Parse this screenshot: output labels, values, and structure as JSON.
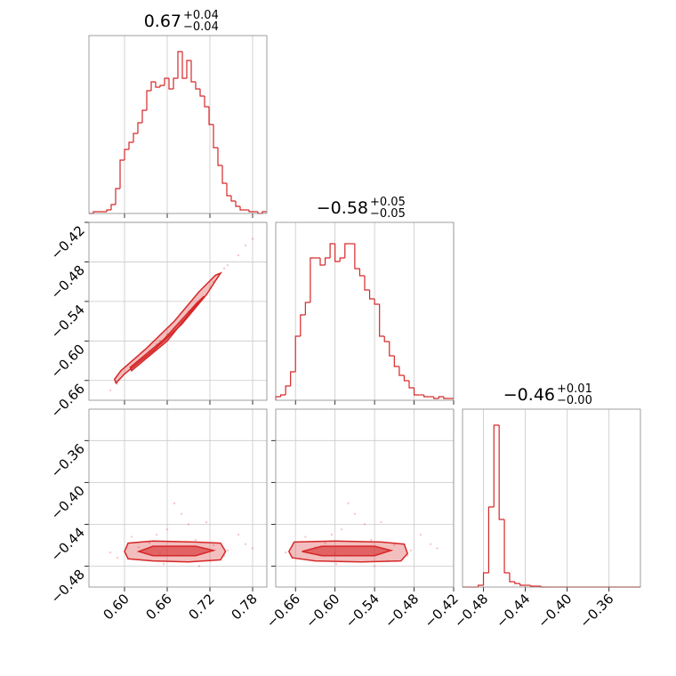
{
  "chart_data": {
    "type": "corner",
    "color": "#d62728",
    "grid": true,
    "parameters": [
      {
        "title": "0.67",
        "upper": "+0.04",
        "lower": "−0.04",
        "lim": [
          0.55,
          0.8
        ],
        "ticks": [
          {
            "value": 0.6,
            "label": "0.60"
          },
          0.66,
          0.72,
          0.78
        ],
        "hist_ylim": [
          0,
          100
        ],
        "bins": [
          0.55,
          0.55625,
          0.5625,
          0.56875,
          0.575,
          0.58125,
          0.5875,
          0.59375,
          0.6,
          0.60625,
          0.6125,
          0.61875,
          0.625,
          0.63125,
          0.6375,
          0.64375,
          0.65,
          0.65625,
          0.6625,
          0.66875,
          0.675,
          0.68125,
          0.6875,
          0.69375,
          0.7,
          0.70625,
          0.7125,
          0.71875,
          0.725,
          0.73125,
          0.7375,
          0.74375,
          0.75,
          0.75625,
          0.7625,
          0.76875,
          0.775,
          0.78125,
          0.7875,
          0.79375,
          0.8
        ],
        "counts": [
          0,
          1,
          1,
          1,
          2,
          5,
          14,
          30,
          36,
          40,
          45,
          51,
          58,
          69,
          74,
          71,
          72,
          76,
          70,
          76,
          91,
          76,
          86,
          74,
          70,
          66,
          60,
          50,
          37,
          27,
          17,
          10,
          7,
          4,
          2,
          2,
          1,
          1,
          0,
          1
        ]
      },
      {
        "title": "−0.58",
        "upper": "+0.05",
        "lower": "−0.05",
        "lim": [
          -0.69,
          -0.42
        ],
        "ticks": [
          {
            "value": -0.66,
            "label": "−0.66"
          },
          {
            "value": -0.6,
            "label": "−0.60"
          },
          {
            "value": -0.54,
            "label": "−0.54"
          },
          {
            "value": -0.48,
            "label": "−0.48"
          },
          {
            "value": -0.42,
            "label": "−0.42"
          }
        ],
        "hist_ylim": [
          0,
          100
        ],
        "bins": [
          -0.69,
          -0.6825,
          -0.675,
          -0.6675,
          -0.66,
          -0.6525,
          -0.645,
          -0.6375,
          -0.63,
          -0.6225,
          -0.615,
          -0.6075,
          -0.6,
          -0.5925,
          -0.585,
          -0.5775,
          -0.57,
          -0.5625,
          -0.555,
          -0.5475,
          -0.54,
          -0.5325,
          -0.525,
          -0.5175,
          -0.51,
          -0.5025,
          -0.495,
          -0.4875,
          -0.48,
          -0.4725,
          -0.465,
          -0.4575,
          -0.45,
          -0.4425,
          -0.435,
          -0.4275,
          -0.42
        ],
        "counts": [
          2,
          3,
          8,
          16,
          36,
          48,
          55,
          80,
          80,
          76,
          80,
          88,
          78,
          80,
          88,
          88,
          74,
          70,
          62,
          57,
          54,
          36,
          33,
          25,
          19,
          14,
          11,
          7,
          3,
          3,
          2,
          2,
          1,
          2,
          1,
          1
        ]
      },
      {
        "title": "−0.46",
        "upper": "+0.01",
        "lower": "−0.00",
        "lim": [
          -0.5,
          -0.33
        ],
        "ticks": [
          {
            "value": -0.48,
            "label": "−0.48"
          },
          {
            "value": -0.44,
            "label": "−0.44"
          },
          {
            "value": -0.4,
            "label": "−0.40"
          },
          {
            "value": -0.36,
            "label": "−0.36"
          }
        ],
        "hist_ylim": [
          0,
          100
        ],
        "bins": [
          -0.5,
          -0.495,
          -0.49,
          -0.485,
          -0.48,
          -0.475,
          -0.47,
          -0.465,
          -0.46,
          -0.455,
          -0.45,
          -0.445,
          -0.44,
          -0.435,
          -0.43,
          -0.425,
          -0.42,
          -0.415,
          -0.41,
          -0.405,
          -0.4,
          -0.395,
          -0.39,
          -0.385,
          -0.38,
          -0.375,
          -0.37,
          -0.365,
          -0.36,
          -0.355,
          -0.35,
          -0.345,
          -0.34,
          -0.335,
          -0.33
        ],
        "counts": [
          0,
          0,
          0,
          1,
          8,
          45,
          91,
          38,
          8,
          3,
          2,
          1,
          1,
          0.5,
          0.5,
          0,
          0,
          0,
          0,
          0,
          0,
          0,
          0,
          0,
          0,
          0,
          0,
          0,
          0,
          0,
          0,
          0,
          0,
          0
        ]
      }
    ],
    "samples": [
      [
        0.62,
        -0.63,
        -0.462
      ],
      [
        0.65,
        -0.6,
        -0.468
      ],
      [
        0.7,
        -0.545,
        -0.455
      ],
      [
        0.74,
        -0.49,
        -0.47
      ],
      [
        0.76,
        -0.47,
        -0.45
      ],
      [
        0.78,
        -0.445,
        -0.463
      ],
      [
        0.59,
        -0.665,
        -0.472
      ],
      [
        0.68,
        -0.57,
        -0.43
      ],
      [
        0.66,
        -0.59,
        -0.445
      ],
      [
        0.72,
        -0.52,
        -0.475
      ],
      [
        0.635,
        -0.615,
        -0.458
      ],
      [
        0.705,
        -0.54,
        -0.48
      ],
      [
        0.61,
        -0.645,
        -0.452
      ],
      [
        0.69,
        -0.555,
        -0.44
      ],
      [
        0.745,
        -0.485,
        -0.465
      ],
      [
        0.67,
        -0.58,
        -0.42
      ],
      [
        0.725,
        -0.51,
        -0.46
      ],
      [
        0.655,
        -0.598,
        -0.478
      ],
      [
        0.58,
        -0.675,
        -0.467
      ],
      [
        0.77,
        -0.455,
        -0.459
      ],
      [
        0.715,
        -0.53,
        -0.438
      ],
      [
        0.645,
        -0.605,
        -0.45
      ]
    ],
    "contours": [
      [
        [
          [
            0.588,
            -0.664
          ],
          [
            0.6,
            -0.65
          ],
          [
            0.64,
            -0.615
          ],
          [
            0.68,
            -0.575
          ],
          [
            0.715,
            -0.53
          ],
          [
            0.73,
            -0.505
          ],
          [
            0.735,
            -0.497
          ],
          [
            0.728,
            -0.5
          ],
          [
            0.705,
            -0.525
          ],
          [
            0.67,
            -0.57
          ],
          [
            0.63,
            -0.612
          ],
          [
            0.595,
            -0.645
          ],
          [
            0.586,
            -0.658
          ]
        ],
        [
          [
            0.61,
            -0.645
          ],
          [
            0.66,
            -0.6
          ],
          [
            0.705,
            -0.54
          ],
          [
            0.712,
            -0.532
          ],
          [
            0.702,
            -0.542
          ],
          [
            0.655,
            -0.598
          ],
          [
            0.608,
            -0.64
          ]
        ]
      ],
      [
        [
          [
            0.6,
            -0.466
          ],
          [
            0.605,
            -0.458
          ],
          [
            0.64,
            -0.456
          ],
          [
            0.7,
            -0.457
          ],
          [
            0.735,
            -0.458
          ],
          [
            0.742,
            -0.466
          ],
          [
            0.735,
            -0.474
          ],
          [
            0.69,
            -0.476
          ],
          [
            0.64,
            -0.475
          ],
          [
            0.605,
            -0.473
          ]
        ],
        [
          [
            0.62,
            -0.466
          ],
          [
            0.64,
            -0.461
          ],
          [
            0.7,
            -0.461
          ],
          [
            0.725,
            -0.465
          ],
          [
            0.7,
            -0.47
          ],
          [
            0.64,
            -0.47
          ]
        ]
      ],
      [
        [
          [
            -0.67,
            -0.466
          ],
          [
            -0.662,
            -0.457
          ],
          [
            -0.6,
            -0.456
          ],
          [
            -0.53,
            -0.457
          ],
          [
            -0.495,
            -0.459
          ],
          [
            -0.49,
            -0.468
          ],
          [
            -0.5,
            -0.475
          ],
          [
            -0.56,
            -0.476
          ],
          [
            -0.63,
            -0.475
          ],
          [
            -0.665,
            -0.472
          ]
        ],
        [
          [
            -0.65,
            -0.466
          ],
          [
            -0.62,
            -0.461
          ],
          [
            -0.54,
            -0.461
          ],
          [
            -0.515,
            -0.465
          ],
          [
            -0.54,
            -0.47
          ],
          [
            -0.62,
            -0.47
          ]
        ]
      ]
    ]
  }
}
